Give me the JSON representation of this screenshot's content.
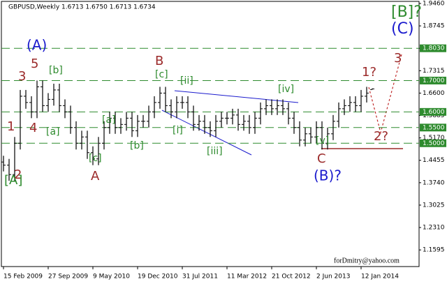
{
  "chart_data": {
    "type": "ohlc",
    "title": "GBPUSD,Weekly  1.6713 1.6750 1.6713 1.6734",
    "watermark": "forDmitry@yahoo.com",
    "x": [
      0,
      4,
      8,
      12,
      16,
      20,
      24,
      28,
      32,
      36,
      40,
      44,
      48,
      52,
      56,
      60,
      64,
      68,
      72,
      76,
      80,
      84,
      88,
      92,
      96,
      100,
      104,
      108,
      112,
      116,
      120,
      124,
      128,
      132,
      136,
      140,
      144,
      148,
      152,
      156,
      160,
      164,
      168,
      172,
      176,
      180,
      184,
      188,
      192,
      196,
      200,
      204,
      208,
      212,
      216,
      220,
      224,
      228,
      232,
      236,
      240,
      244,
      248,
      252,
      256,
      260,
      264
    ],
    "open": [
      1.44,
      1.43,
      1.4,
      1.5,
      1.65,
      1.63,
      1.6,
      1.68,
      1.62,
      1.64,
      1.67,
      1.62,
      1.6,
      1.55,
      1.5,
      1.52,
      1.47,
      1.45,
      1.5,
      1.55,
      1.58,
      1.55,
      1.56,
      1.58,
      1.54,
      1.57,
      1.57,
      1.6,
      1.63,
      1.66,
      1.62,
      1.6,
      1.63,
      1.63,
      1.6,
      1.56,
      1.57,
      1.55,
      1.54,
      1.57,
      1.58,
      1.58,
      1.59,
      1.56,
      1.57,
      1.55,
      1.58,
      1.61,
      1.62,
      1.61,
      1.62,
      1.61,
      1.58,
      1.55,
      1.51,
      1.53,
      1.52,
      1.55,
      1.5,
      1.53,
      1.57,
      1.61,
      1.62,
      1.63,
      1.62,
      1.65,
      1.6713
    ],
    "high": [
      1.46,
      1.45,
      1.52,
      1.67,
      1.67,
      1.65,
      1.7,
      1.7,
      1.66,
      1.69,
      1.69,
      1.64,
      1.62,
      1.57,
      1.54,
      1.54,
      1.49,
      1.52,
      1.57,
      1.6,
      1.6,
      1.58,
      1.6,
      1.6,
      1.59,
      1.59,
      1.62,
      1.65,
      1.68,
      1.68,
      1.64,
      1.65,
      1.65,
      1.65,
      1.62,
      1.59,
      1.59,
      1.57,
      1.59,
      1.6,
      1.6,
      1.61,
      1.61,
      1.59,
      1.59,
      1.6,
      1.63,
      1.64,
      1.64,
      1.64,
      1.64,
      1.63,
      1.6,
      1.57,
      1.55,
      1.55,
      1.57,
      1.57,
      1.55,
      1.59,
      1.63,
      1.64,
      1.65,
      1.65,
      1.67,
      1.68,
      1.675
    ],
    "low": [
      1.41,
      1.38,
      1.38,
      1.48,
      1.61,
      1.58,
      1.58,
      1.6,
      1.6,
      1.62,
      1.6,
      1.58,
      1.53,
      1.48,
      1.48,
      1.45,
      1.43,
      1.43,
      1.48,
      1.53,
      1.53,
      1.53,
      1.54,
      1.52,
      1.52,
      1.55,
      1.55,
      1.58,
      1.61,
      1.6,
      1.58,
      1.58,
      1.61,
      1.58,
      1.54,
      1.54,
      1.53,
      1.52,
      1.52,
      1.55,
      1.56,
      1.56,
      1.54,
      1.54,
      1.53,
      1.53,
      1.56,
      1.59,
      1.59,
      1.59,
      1.59,
      1.56,
      1.53,
      1.49,
      1.49,
      1.5,
      1.5,
      1.48,
      1.48,
      1.51,
      1.55,
      1.59,
      1.6,
      1.6,
      1.6,
      1.63,
      1.6713
    ],
    "close": [
      1.43,
      1.4,
      1.5,
      1.65,
      1.63,
      1.6,
      1.68,
      1.62,
      1.64,
      1.67,
      1.62,
      1.6,
      1.55,
      1.5,
      1.52,
      1.47,
      1.45,
      1.5,
      1.55,
      1.58,
      1.55,
      1.56,
      1.58,
      1.54,
      1.57,
      1.57,
      1.6,
      1.63,
      1.66,
      1.62,
      1.6,
      1.63,
      1.63,
      1.6,
      1.56,
      1.57,
      1.55,
      1.54,
      1.57,
      1.58,
      1.58,
      1.59,
      1.56,
      1.57,
      1.55,
      1.58,
      1.61,
      1.62,
      1.61,
      1.62,
      1.61,
      1.58,
      1.55,
      1.51,
      1.53,
      1.52,
      1.55,
      1.5,
      1.53,
      1.57,
      1.61,
      1.62,
      1.63,
      1.62,
      1.65,
      1.66,
      1.6734
    ],
    "color": "#000000",
    "xlim": [
      -2.5,
      297.5
    ],
    "xticks": [
      {
        "value": 0,
        "label": "15 Feb 2009"
      },
      {
        "value": 32,
        "label": "27 Sep 2009"
      },
      {
        "value": 64,
        "label": "9 May 2010"
      },
      {
        "value": 96,
        "label": "19 Dec 2010"
      },
      {
        "value": 128,
        "label": "31 Jul 2011"
      },
      {
        "value": 160,
        "label": "11 Mar 2012"
      },
      {
        "value": 192,
        "label": "21 Oct 2012"
      },
      {
        "value": 224,
        "label": "2 Jun 2013"
      },
      {
        "value": 256,
        "label": "12 Jan 2014"
      }
    ],
    "ylim": [
      1.1064,
      1.9571
    ],
    "yticks": [
      {
        "value": 1.946,
        "label": "1.9460"
      },
      1.8745,
      {
        "value": 1.803,
        "label": "1.8030"
      },
      1.7315,
      {
        "value": 1.66,
        "label": "1.6600"
      },
      1.5885,
      {
        "value": 1.517,
        "label": "1.5170"
      },
      1.4455,
      {
        "value": 1.374,
        "label": "1.3740"
      },
      1.3025,
      {
        "value": 1.231,
        "label": "1.2310"
      },
      1.1595
    ],
    "levels": [
      {
        "value": 1.803,
        "label": "1.8030"
      },
      {
        "value": 1.7,
        "label": "1.7000"
      },
      {
        "value": 1.6,
        "label": "1.6000"
      },
      {
        "value": 1.55,
        "label": "1.5500"
      },
      {
        "value": 1.5,
        "label": "1.5000"
      }
    ],
    "level_color": "#2e8b2e",
    "annotations": [
      {
        "text": "[B]?",
        "color": "#2e8b2e"
      },
      {
        "text": "(C)",
        "color": "#1a1acd"
      },
      {
        "text": "(A)",
        "color": "#1a1acd"
      },
      {
        "text": "5",
        "color": "#9b2a2a"
      },
      {
        "text": "3",
        "color": "#9b2a2a"
      },
      {
        "text": "[b]",
        "color": "#2e8b2e"
      },
      {
        "text": "B",
        "color": "#9b2a2a"
      },
      {
        "text": "[c]",
        "color": "#2e8b2e"
      },
      {
        "text": "[ii]",
        "color": "#2e8b2e"
      },
      {
        "text": "[iv]",
        "color": "#2e8b2e"
      },
      {
        "text": "1?",
        "color": "#9b2a2a"
      },
      {
        "text": "3",
        "color": "#9b2a2a"
      },
      {
        "text": "[a]",
        "color": "#2e8b2e"
      },
      {
        "text": "1",
        "color": "#9b2a2a"
      },
      {
        "text": "4",
        "color": "#9b2a2a"
      },
      {
        "text": "[a]",
        "color": "#2e8b2e"
      },
      {
        "text": "[i]",
        "color": "#2e8b2e"
      },
      {
        "text": "[b]",
        "color": "#2e8b2e"
      },
      {
        "text": "2?",
        "color": "#9b2a2a"
      },
      {
        "text": "[iii]",
        "color": "#2e8b2e"
      },
      {
        "text": "2",
        "color": "#9b2a2a"
      },
      {
        "text": "[c]",
        "color": "#2e8b2e"
      },
      {
        "text": "[v]",
        "color": "#2e8b2e"
      },
      {
        "text": "A",
        "color": "#9b2a2a"
      },
      {
        "text": "C",
        "color": "#9b2a2a"
      },
      {
        "text": "(B)?",
        "color": "#1a1acd"
      },
      {
        "text": "[A]",
        "color": "#2e8b2e"
      }
    ]
  }
}
